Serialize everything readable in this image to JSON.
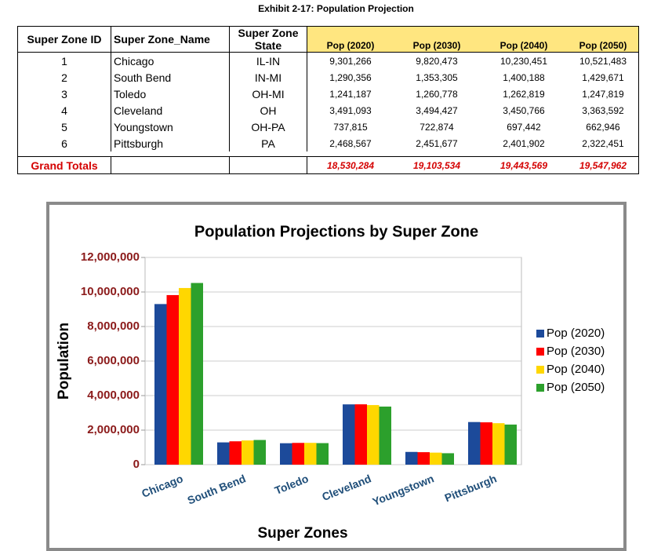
{
  "title": "Exhibit 2-17: Population Projection",
  "table": {
    "headers": [
      "Super Zone ID",
      "Super Zone_Name",
      "Super Zone State",
      "Pop (2020)",
      "Pop (2030)",
      "Pop (2040)",
      "Pop (2050)"
    ],
    "rows": [
      [
        "1",
        "Chicago",
        "IL-IN",
        "9,301,266",
        "9,820,473",
        "10,230,451",
        "10,521,483"
      ],
      [
        "2",
        "South Bend",
        "IN-MI",
        "1,290,356",
        "1,353,305",
        "1,400,188",
        "1,429,671"
      ],
      [
        "3",
        "Toledo",
        "OH-MI",
        "1,241,187",
        "1,260,778",
        "1,262,819",
        "1,247,819"
      ],
      [
        "4",
        "Cleveland",
        "OH",
        "3,491,093",
        "3,494,427",
        "3,450,766",
        "3,363,592"
      ],
      [
        "5",
        "Youngstown",
        "OH-PA",
        "737,815",
        "722,874",
        "697,442",
        "662,946"
      ],
      [
        "6",
        "Pittsburgh",
        "PA",
        "2,468,567",
        "2,451,677",
        "2,401,902",
        "2,322,451"
      ]
    ],
    "totals": {
      "label": "Grand Totals",
      "values": [
        "18,530,284",
        "19,103,534",
        "19,443,569",
        "19,547,962"
      ]
    }
  },
  "chart_data": {
    "type": "bar",
    "title": "Population Projections by Super Zone",
    "x_label": "Super Zones",
    "y_label": "Population",
    "categories": [
      "Chicago",
      "South Bend",
      "Toledo",
      "Cleveland",
      "Youngstown",
      "Pittsburgh"
    ],
    "series": [
      {
        "name": "Pop (2020)",
        "color": "#1c4a9a",
        "values": [
          9301266,
          1290356,
          1241187,
          3491093,
          737815,
          2468567
        ]
      },
      {
        "name": "Pop (2030)",
        "color": "#ff0000",
        "values": [
          9820473,
          1353305,
          1260778,
          3494427,
          722874,
          2451677
        ]
      },
      {
        "name": "Pop (2040)",
        "color": "#ffd700",
        "values": [
          10230451,
          1400188,
          1262819,
          3450766,
          697442,
          2401902
        ]
      },
      {
        "name": "Pop (2050)",
        "color": "#2ca02c",
        "values": [
          10521483,
          1429671,
          1247819,
          3363592,
          662946,
          2322451
        ]
      }
    ],
    "ylim": [
      0,
      12000000
    ],
    "yticks": [
      0,
      {
        "value": 2000000,
        "label": "2,000,000"
      },
      {
        "value": 4000000,
        "label": "4,000,000"
      },
      {
        "value": 6000000,
        "label": "6,000,000"
      },
      {
        "value": 8000000,
        "label": "8,000,000"
      },
      {
        "value": 10000000,
        "label": "10,000,000"
      },
      {
        "value": 12000000,
        "label": "12,000,000"
      }
    ],
    "grid": true,
    "legend": "right"
  }
}
